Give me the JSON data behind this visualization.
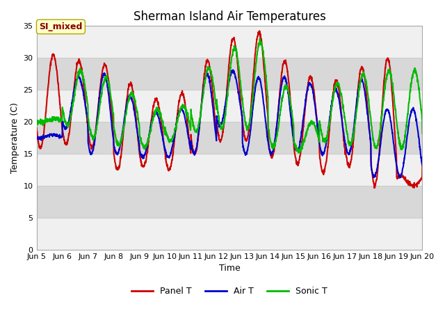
{
  "title": "Sherman Island Air Temperatures",
  "xlabel": "Time",
  "ylabel": "Temperature (C)",
  "ylim": [
    0,
    35
  ],
  "yticks": [
    0,
    5,
    10,
    15,
    20,
    25,
    30,
    35
  ],
  "xlim": [
    5.0,
    20.0
  ],
  "xtick_labels": [
    "Jun 5",
    "Jun 6",
    "Jun 7",
    "Jun 8",
    "Jun 9",
    "Jun 10",
    "Jun 11",
    "Jun 12",
    "Jun 13",
    "Jun 14",
    "Jun 15",
    "Jun 16",
    "Jun 17",
    "Jun 18",
    "Jun 19",
    "Jun 20"
  ],
  "xtick_positions": [
    5,
    6,
    7,
    8,
    9,
    10,
    11,
    12,
    13,
    14,
    15,
    16,
    17,
    18,
    19,
    20
  ],
  "panel_color": "#cc0000",
  "air_color": "#0000cc",
  "sonic_color": "#00bb00",
  "fig_bg_color": "#ffffff",
  "band_light": "#f0f0f0",
  "band_dark": "#d8d8d8",
  "annotation_text": "SI_mixed",
  "annotation_bg": "#ffffcc",
  "annotation_fg": "#880000",
  "grid_color": "#cccccc",
  "title_fontsize": 12,
  "axis_fontsize": 9,
  "tick_fontsize": 8,
  "line_width": 1.5
}
